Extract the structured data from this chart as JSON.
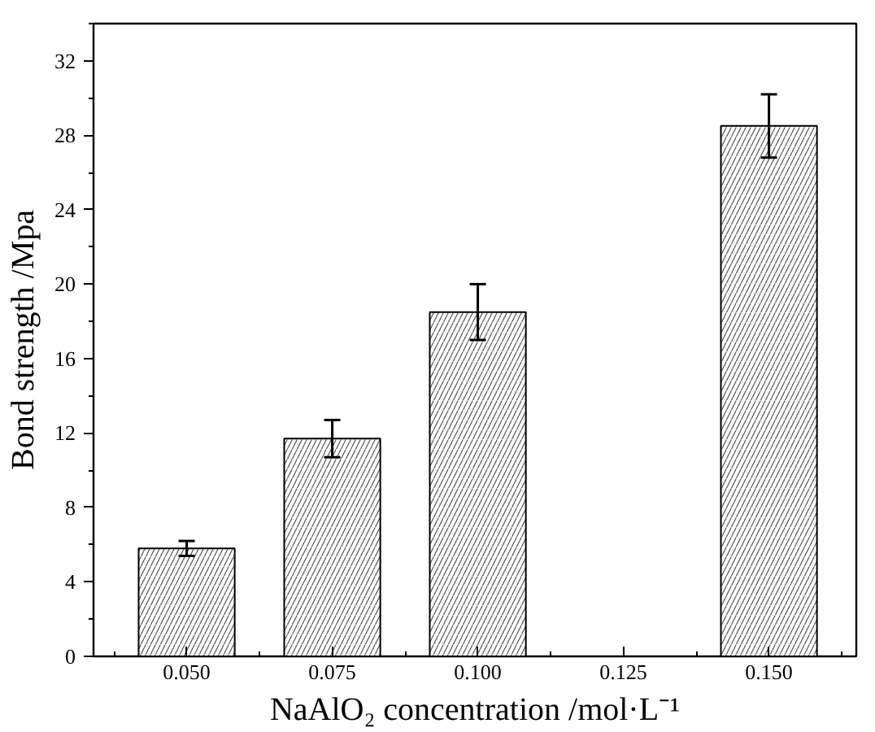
{
  "chart_data": {
    "type": "bar",
    "xlabel": "NaAlO₂ concentration /mol·L⁻¹",
    "ylabel": "Bond strength /Mpa",
    "x": [
      0.05,
      0.075,
      0.1,
      0.125,
      0.15
    ],
    "values": [
      5.8,
      11.7,
      18.5,
      null,
      28.5
    ],
    "errors": [
      0.4,
      1.0,
      1.5,
      null,
      1.7
    ],
    "color": "#ffffff",
    "xlim": [
      0.034,
      0.165
    ],
    "ylim": [
      0,
      34
    ],
    "xticks": [
      {
        "value": 0.05,
        "label": "0.050"
      },
      {
        "value": 0.075,
        "label": "0.075"
      },
      {
        "value": 0.1,
        "label": "0.100"
      },
      {
        "value": 0.125,
        "label": "0.125"
      },
      {
        "value": 0.15,
        "label": "0.150"
      }
    ],
    "yticks": [
      0,
      4,
      8,
      12,
      16,
      20,
      24,
      28,
      32
    ],
    "grid": false
  }
}
